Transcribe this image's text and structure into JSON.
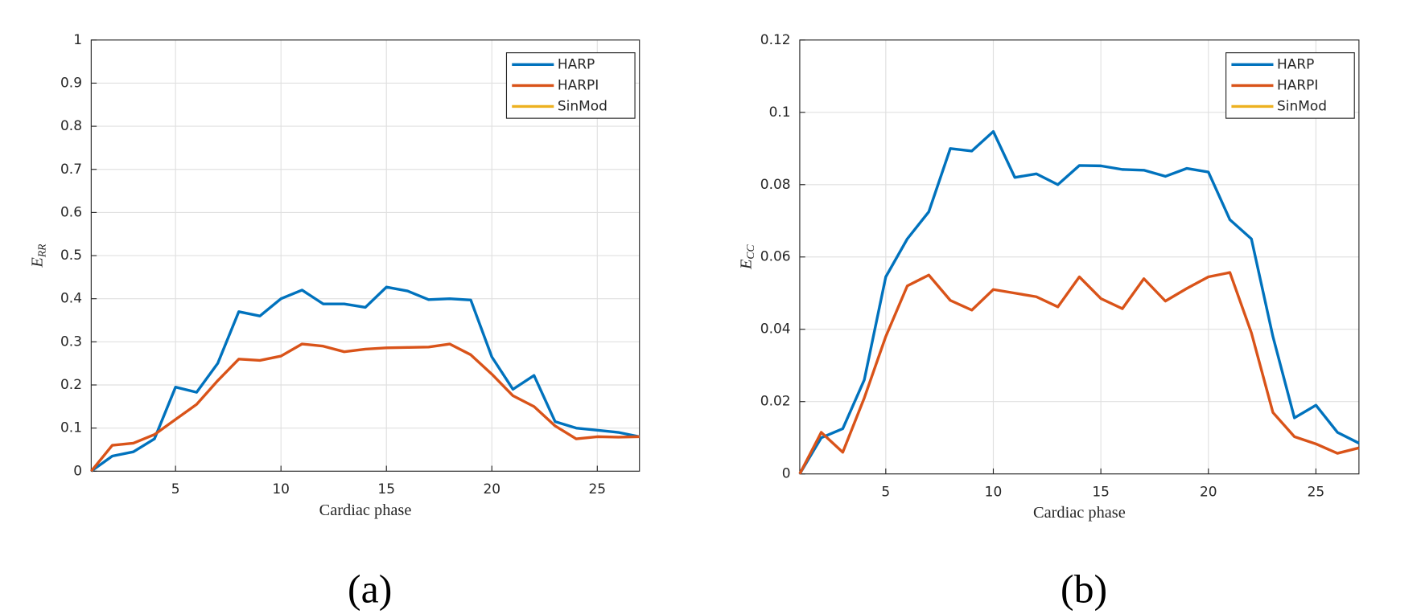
{
  "chart_data": [
    {
      "type": "line",
      "caption": "(a)",
      "xlabel": "Cardiac phase",
      "ylabel": "E",
      "ylabel_subscript": "RR",
      "x": [
        1,
        2,
        3,
        4,
        5,
        6,
        7,
        8,
        9,
        10,
        11,
        12,
        13,
        14,
        15,
        16,
        17,
        18,
        19,
        20,
        21,
        22,
        23,
        24,
        25,
        26,
        27
      ],
      "xlim": [
        1,
        27
      ],
      "xticks": [
        5,
        10,
        15,
        20,
        25
      ],
      "ylim": [
        0,
        1
      ],
      "yticks": [
        0,
        0.1,
        0.2,
        0.3,
        0.4,
        0.5,
        0.6,
        0.7,
        0.8,
        0.9,
        1
      ],
      "grid": true,
      "legend": "top-right",
      "series": [
        {
          "name": "HARP",
          "color": "#0072BD",
          "values": [
            0,
            0.035,
            0.045,
            0.075,
            0.195,
            0.183,
            0.25,
            0.37,
            0.36,
            0.4,
            0.42,
            0.388,
            0.388,
            0.38,
            0.427,
            0.418,
            0.398,
            0.4,
            0.397,
            0.265,
            0.19,
            0.222,
            0.115,
            0.1,
            0.095,
            0.09,
            0.08
          ]
        },
        {
          "name": "HARPI",
          "color": "#D95319",
          "values": [
            0,
            0.06,
            0.065,
            0.085,
            0.12,
            0.155,
            0.21,
            0.26,
            0.257,
            0.267,
            0.295,
            0.29,
            0.277,
            0.283,
            0.286,
            0.287,
            0.288,
            0.295,
            0.27,
            0.225,
            0.175,
            0.15,
            0.105,
            0.075,
            0.08,
            0.079,
            0.08
          ]
        },
        {
          "name": "SinMod",
          "color": "#EDB120",
          "values": [
            null,
            null,
            null,
            null,
            null,
            null,
            null,
            null,
            null,
            null,
            null,
            null,
            null,
            null,
            null,
            null,
            null,
            null,
            null,
            null,
            null,
            null,
            null,
            null,
            null,
            null,
            null
          ]
        }
      ]
    },
    {
      "type": "line",
      "caption": "(b)",
      "xlabel": "Cardiac phase",
      "ylabel": "E",
      "ylabel_subscript": "CC",
      "x": [
        1,
        2,
        3,
        4,
        5,
        6,
        7,
        8,
        9,
        10,
        11,
        12,
        13,
        14,
        15,
        16,
        17,
        18,
        19,
        20,
        21,
        22,
        23,
        24,
        25,
        26,
        27
      ],
      "xlim": [
        1,
        27
      ],
      "xticks": [
        5,
        10,
        15,
        20,
        25
      ],
      "ylim": [
        0,
        0.12
      ],
      "yticks": [
        0,
        0.02,
        0.04,
        0.06,
        0.08,
        0.1,
        0.12
      ],
      "grid": true,
      "legend": "top-right",
      "series": [
        {
          "name": "HARP",
          "color": "#0072BD",
          "values": [
            0,
            0.01,
            0.0125,
            0.026,
            0.0545,
            0.065,
            0.0725,
            0.09,
            0.0893,
            0.0947,
            0.082,
            0.083,
            0.08,
            0.0853,
            0.0852,
            0.0842,
            0.084,
            0.0823,
            0.0845,
            0.0835,
            0.0703,
            0.065,
            0.038,
            0.0155,
            0.019,
            0.0115,
            0.0085
          ]
        },
        {
          "name": "HARPI",
          "color": "#D95319",
          "values": [
            0,
            0.0115,
            0.006,
            0.021,
            0.038,
            0.052,
            0.055,
            0.048,
            0.0453,
            0.051,
            0.05,
            0.049,
            0.0462,
            0.0545,
            0.0485,
            0.0457,
            0.054,
            0.0478,
            0.0513,
            0.0545,
            0.0557,
            0.039,
            0.017,
            0.0103,
            0.0083,
            0.0057,
            0.0072
          ]
        },
        {
          "name": "SinMod",
          "color": "#EDB120",
          "values": [
            null,
            null,
            null,
            null,
            null,
            null,
            null,
            null,
            null,
            null,
            null,
            null,
            null,
            null,
            null,
            null,
            null,
            null,
            null,
            null,
            null,
            null,
            null,
            null,
            null,
            null,
            null
          ]
        }
      ]
    }
  ]
}
